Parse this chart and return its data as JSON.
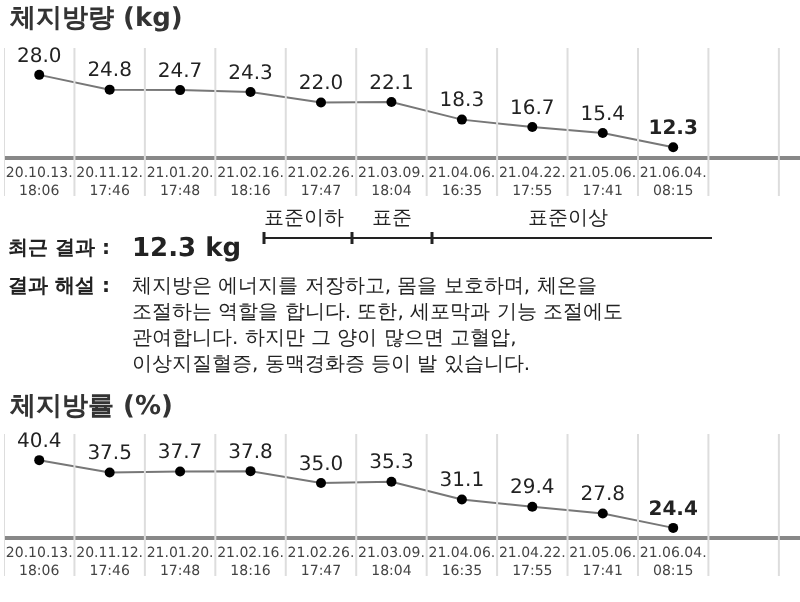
{
  "chart_data": [
    {
      "type": "line",
      "title": "체지방량 (kg)",
      "categories": [
        "20.10.13.\n18:06",
        "20.11.12.\n17:46",
        "21.01.20.\n17:48",
        "21.02.16.\n18:16",
        "21.02.26.\n17:47",
        "21.03.09.\n18:04",
        "21.04.06.\n16:35",
        "21.04.22.\n17:55",
        "21.05.06.\n17:41",
        "21.06.04.\n08:15",
        null
      ],
      "series": [
        {
          "color": "#777777",
          "values": [
            28.0,
            24.8,
            24.7,
            24.3,
            22.0,
            22.1,
            18.3,
            16.7,
            15.4,
            12.3,
            null
          ],
          "value_labels": [
            "28.0",
            "24.8",
            "24.7",
            "24.3",
            "22.0",
            "22.1",
            "18.3",
            "16.7",
            "15.4",
            "12.3",
            null
          ]
        }
      ],
      "marker": "circle",
      "grid": "x"
    },
    {
      "type": "other",
      "annotations": [
        "최근 결과 :",
        "12.3 kg",
        "표준이하",
        "표준",
        "표준이상",
        "결과 해설 :",
        "체지방은 에너지를 저장하고, 몸을 보호하며, 체온을 조절하는 역할을 합니다. 또한, 세포막과 기능 조절에도 관여합니다. 하지만 그 양이 많으면 고혈압, 이상지질혈증, 동맥경화증 등이 발 있습니다."
      ]
    },
    {
      "type": "line",
      "title": "체지방률 (%)",
      "categories": [
        "20.10.13.\n18:06",
        "20.11.12.\n17:46",
        "21.01.20.\n17:48",
        "21.02.16.\n18:16",
        "21.02.26.\n17:47",
        "21.03.09.\n18:04",
        "21.04.06.\n16:35",
        "21.04.22.\n17:55",
        "21.05.06.\n17:41",
        "21.06.04.\n08:15",
        null
      ],
      "series": [
        {
          "color": "#777777",
          "values": [
            40.4,
            37.5,
            37.7,
            37.8,
            35.0,
            35.3,
            31.1,
            29.4,
            27.8,
            24.4,
            null
          ],
          "value_labels": [
            "40.4",
            "37.5",
            "37.7",
            "37.8",
            "35.0",
            "35.3",
            "31.1",
            "29.4",
            "27.8",
            "24.4",
            null
          ]
        }
      ],
      "marker": "circle",
      "grid": "x"
    }
  ]
}
